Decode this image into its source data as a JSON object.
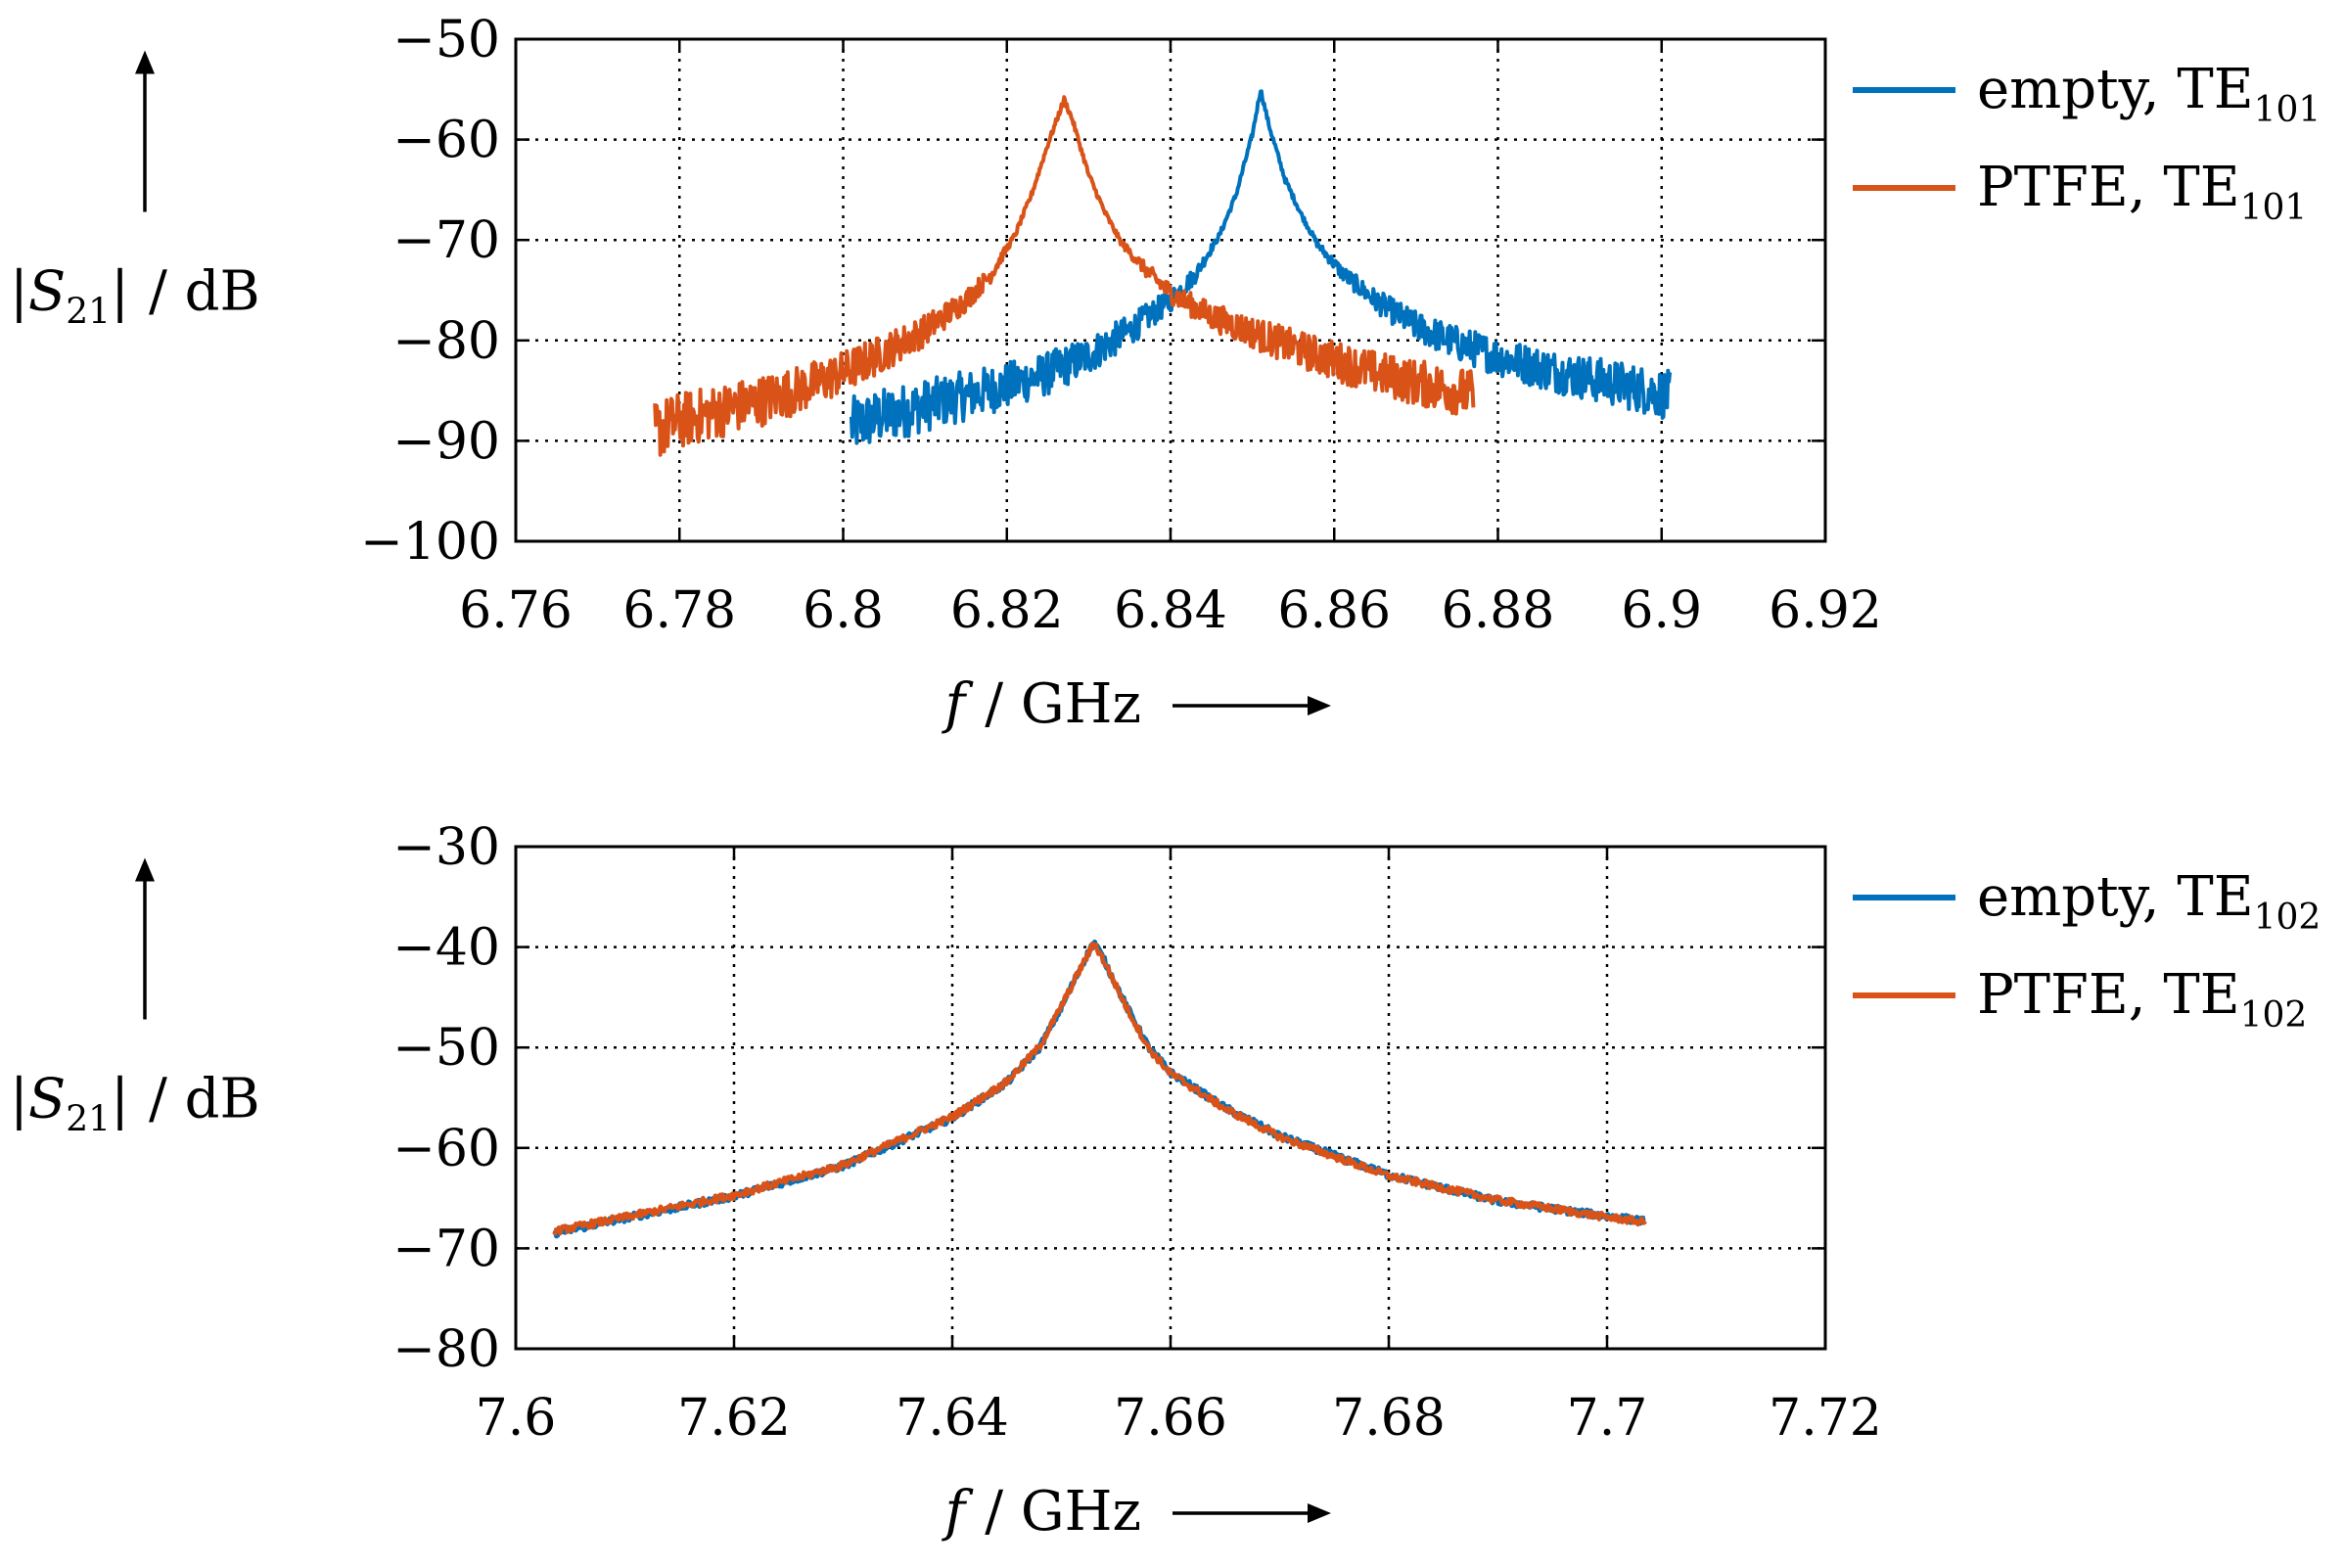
{
  "chart_data": [
    {
      "type": "line",
      "title": "",
      "xlabel": {
        "symbol": "f",
        "unit": "/ GHz"
      },
      "ylabel": {
        "symbol": "S",
        "subscript": "21",
        "unit": "/ dB"
      },
      "xlim": [
        6.76,
        6.92
      ],
      "ylim": [
        -100,
        -50
      ],
      "xticks": [
        6.76,
        6.78,
        6.8,
        6.82,
        6.84,
        6.86,
        6.88,
        6.9,
        6.92
      ],
      "xtick_labels": [
        "6.76",
        "6.78",
        "6.8",
        "6.82",
        "6.84",
        "6.86",
        "6.88",
        "6.9",
        "6.92"
      ],
      "yticks": [
        -100,
        -90,
        -80,
        -70,
        -60,
        -50
      ],
      "ytick_labels": [
        "−100",
        "−90",
        "−80",
        "−70",
        "−60",
        "−50"
      ],
      "grid": true,
      "legend_position": "outside-right",
      "series": [
        {
          "name": "empty, TE101",
          "label_text": "empty, TE",
          "label_sub": "101",
          "color": "#0072BD",
          "x": [
            6.801,
            6.805,
            6.81,
            6.815,
            6.82,
            6.825,
            6.83,
            6.835,
            6.84,
            6.843,
            6.846,
            6.848,
            6.85,
            6.851,
            6.852,
            6.854,
            6.856,
            6.858,
            6.861,
            6.865,
            6.87,
            6.875,
            6.88,
            6.885,
            6.89,
            6.895,
            6.901
          ],
          "y": [
            -88.5,
            -87.5,
            -86.5,
            -85.5,
            -84.5,
            -83.3,
            -81.5,
            -79,
            -76,
            -73.5,
            -69.5,
            -65.5,
            -59.5,
            -55,
            -58.5,
            -64,
            -67.5,
            -70.5,
            -73.3,
            -76,
            -78.6,
            -80.3,
            -81.6,
            -82.7,
            -83.6,
            -84.4,
            -85.5
          ]
        },
        {
          "name": "PTFE, TE101",
          "label_text": "PTFE, TE",
          "label_sub": "101",
          "color": "#D95319",
          "x": [
            6.777,
            6.78,
            6.785,
            6.79,
            6.795,
            6.8,
            6.805,
            6.81,
            6.815,
            6.818,
            6.821,
            6.823,
            6.825,
            6.827,
            6.828,
            6.83,
            6.832,
            6.834,
            6.837,
            6.84,
            6.845,
            6.85,
            6.855,
            6.86,
            6.865,
            6.87,
            6.875,
            6.877
          ],
          "y": [
            -89,
            -88,
            -87,
            -86,
            -84.8,
            -83.2,
            -81.2,
            -79,
            -76,
            -73.5,
            -69.5,
            -65.5,
            -60.5,
            -56,
            -58,
            -63.5,
            -67.3,
            -70.3,
            -73,
            -75.3,
            -77.6,
            -79.2,
            -80.7,
            -82,
            -83.2,
            -84.2,
            -85,
            -85.5
          ]
        }
      ]
    },
    {
      "type": "line",
      "title": "",
      "xlabel": {
        "symbol": "f",
        "unit": "/ GHz"
      },
      "ylabel": {
        "symbol": "S",
        "subscript": "21",
        "unit": "/ dB"
      },
      "xlim": [
        7.6,
        7.72
      ],
      "ylim": [
        -80,
        -30
      ],
      "xticks": [
        7.6,
        7.62,
        7.64,
        7.66,
        7.68,
        7.7,
        7.72
      ],
      "xtick_labels": [
        "7.6",
        "7.62",
        "7.64",
        "7.66",
        "7.68",
        "7.7",
        "7.72"
      ],
      "yticks": [
        -80,
        -70,
        -60,
        -50,
        -40,
        -30
      ],
      "ytick_labels": [
        "−80",
        "−70",
        "−60",
        "−50",
        "−40",
        "−30"
      ],
      "grid": true,
      "legend_position": "outside-right",
      "series": [
        {
          "name": "empty, TE102",
          "label_text": "empty, TE",
          "label_sub": "102",
          "color": "#0072BD",
          "x": [
            7.6035,
            7.61,
            7.62,
            7.63,
            7.64,
            7.645,
            7.648,
            7.65,
            7.652,
            7.653,
            7.654,
            7.656,
            7.658,
            7.66,
            7.665,
            7.67,
            7.68,
            7.69,
            7.7,
            7.7035
          ],
          "y": [
            -68.5,
            -67,
            -64.8,
            -61.8,
            -57,
            -53.5,
            -50,
            -46,
            -41.5,
            -39.5,
            -41.5,
            -46,
            -50,
            -52.5,
            -56,
            -58.8,
            -62.7,
            -65.3,
            -66.8,
            -67.3
          ]
        },
        {
          "name": "PTFE, TE102",
          "label_text": "PTFE, TE",
          "label_sub": "102",
          "color": "#D95319",
          "x": [
            7.6035,
            7.61,
            7.62,
            7.63,
            7.64,
            7.645,
            7.648,
            7.65,
            7.652,
            7.653,
            7.654,
            7.656,
            7.658,
            7.66,
            7.665,
            7.67,
            7.68,
            7.69,
            7.7,
            7.7035
          ],
          "y": [
            -68.3,
            -66.9,
            -64.7,
            -61.7,
            -56.9,
            -53.4,
            -49.9,
            -45.9,
            -41.6,
            -39.6,
            -41.6,
            -46.1,
            -50.1,
            -52.6,
            -56.1,
            -58.9,
            -62.8,
            -65.2,
            -66.9,
            -67.4
          ]
        }
      ]
    }
  ]
}
